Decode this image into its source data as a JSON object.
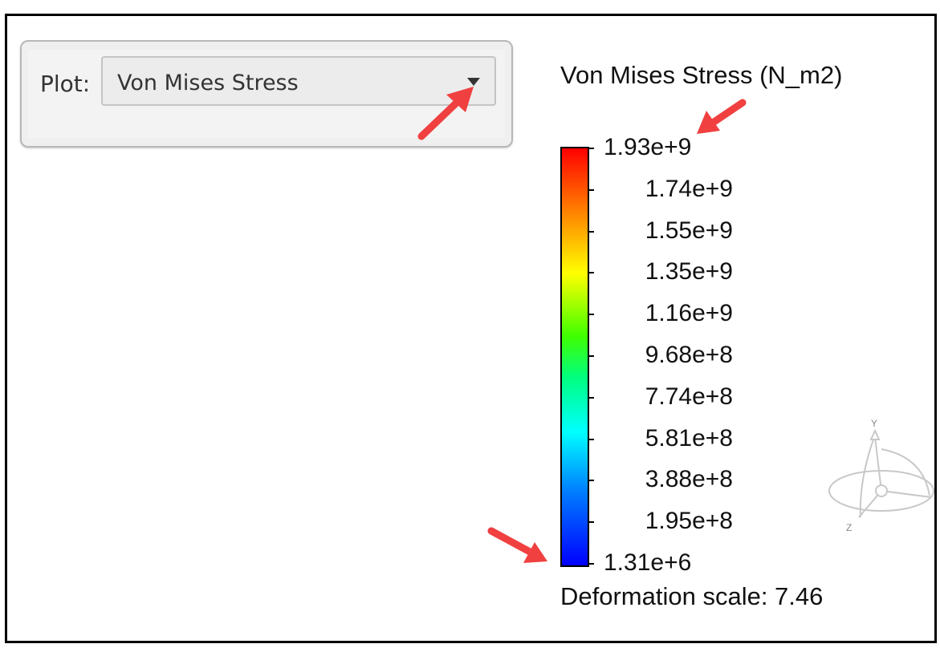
{
  "plot_selector": {
    "label": "Plot:",
    "value": "Von Mises Stress"
  },
  "legend": {
    "title": "Von Mises Stress (N_m2)",
    "ticks": [
      "1.93e+9",
      "1.74e+9",
      "1.55e+9",
      "1.35e+9",
      "1.16e+9",
      "9.68e+8",
      "7.74e+8",
      "5.81e+8",
      "3.88e+8",
      "1.95e+8",
      "1.31e+6"
    ],
    "colormap": [
      "#ff0000",
      "#ff8000",
      "#ffff00",
      "#40ff00",
      "#00ff80",
      "#00ffff",
      "#0080ff",
      "#0000ff"
    ]
  },
  "deformation": "Deformation scale: 7.46",
  "axes_triad": {
    "y_label": "Y",
    "z_label": "Z"
  },
  "annotation_color": "#f04040"
}
